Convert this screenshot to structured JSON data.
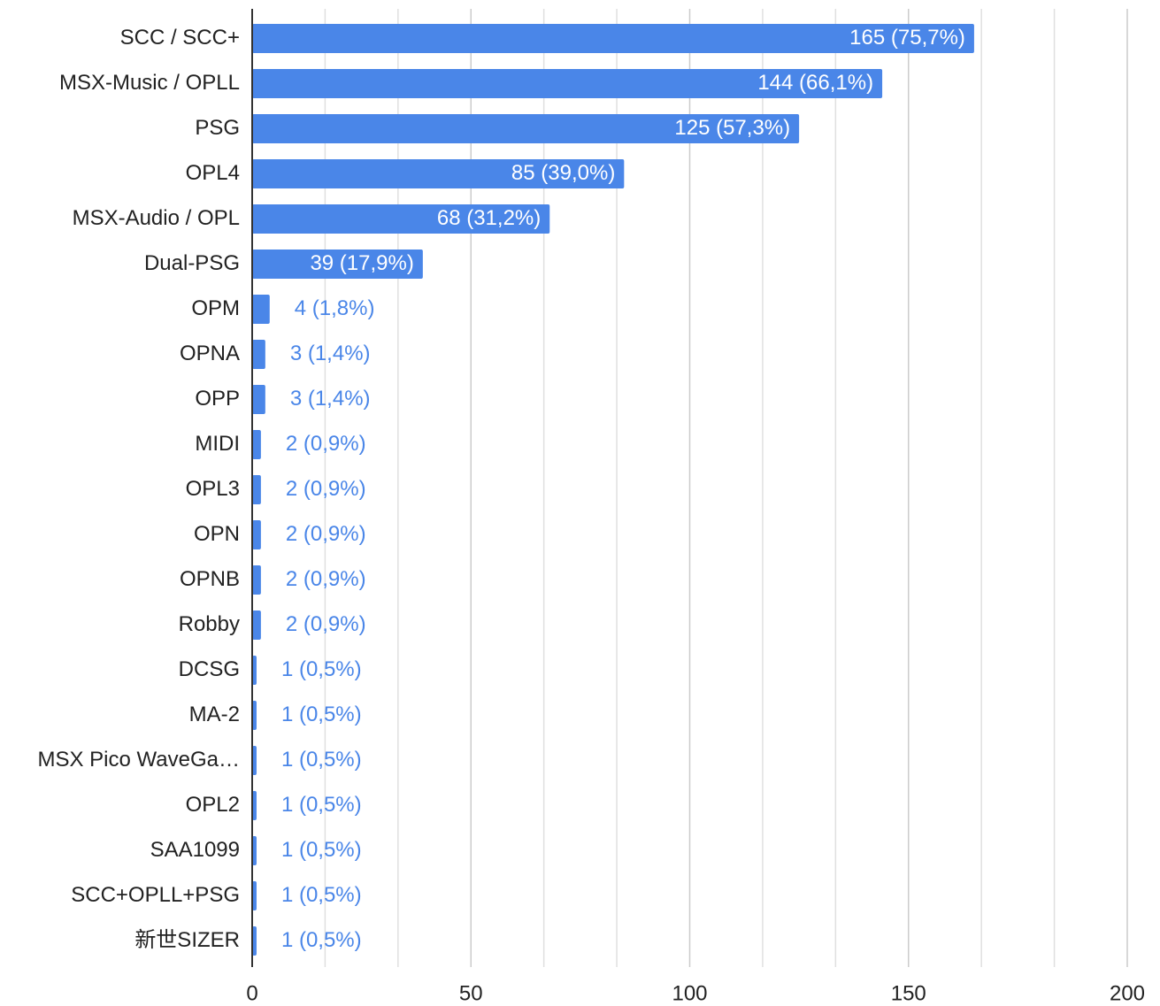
{
  "chart_data": {
    "type": "bar",
    "orientation": "horizontal",
    "categories": [
      "SCC / SCC+",
      "MSX-Music / OPLL",
      "PSG",
      "OPL4",
      "MSX-Audio / OPL",
      "Dual-PSG",
      "OPM",
      "OPNA",
      "OPP",
      "MIDI",
      "OPL3",
      "OPN",
      "OPNB",
      "Robby",
      "DCSG",
      "MA-2",
      "MSX Pico WaveGa…",
      "OPL2",
      "SAA1099",
      "SCC+OPLL+PSG",
      "新世SIZER"
    ],
    "values": [
      165,
      144,
      125,
      85,
      68,
      39,
      4,
      3,
      3,
      2,
      2,
      2,
      2,
      2,
      1,
      1,
      1,
      1,
      1,
      1,
      1
    ],
    "value_labels": [
      "165 (75,7%)",
      "144 (66,1%)",
      "125 (57,3%)",
      "85 (39,0%)",
      "68 (31,2%)",
      "39 (17,9%)",
      "4 (1,8%)",
      "3 (1,4%)",
      "3 (1,4%)",
      "2 (0,9%)",
      "2 (0,9%)",
      "2 (0,9%)",
      "2 (0,9%)",
      "2 (0,9%)",
      "1 (0,5%)",
      "1 (0,5%)",
      "1 (0,5%)",
      "1 (0,5%)",
      "1 (0,5%)",
      "1 (0,5%)",
      "1 (0,5%)"
    ],
    "color": "#4a86e8",
    "xlim": [
      0,
      200
    ],
    "xticks": [
      0,
      50,
      100,
      150,
      200
    ],
    "grid": true
  }
}
